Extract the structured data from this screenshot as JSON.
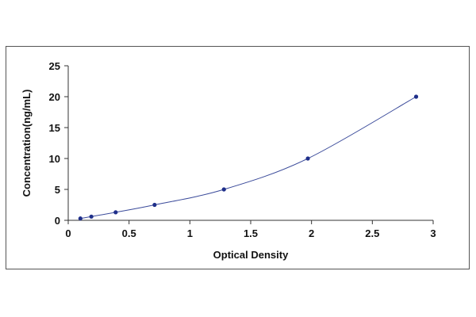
{
  "chart_data": {
    "type": "scatter",
    "title": "",
    "xlabel": "Optical Density",
    "ylabel": "Concentration(ng/mL)",
    "xlim": [
      0,
      3
    ],
    "ylim": [
      0,
      25
    ],
    "x_ticks": [
      0,
      0.5,
      1,
      1.5,
      2,
      2.5,
      3
    ],
    "x_tick_labels": [
      "0",
      "0.5",
      "1",
      "1.5",
      "2",
      "2.5",
      "3"
    ],
    "y_ticks": [
      0,
      5,
      10,
      15,
      20,
      25
    ],
    "y_tick_labels": [
      "0",
      "5",
      "10",
      "15",
      "20",
      "25"
    ],
    "grid": false,
    "legend": "none",
    "colors": {
      "points": "#1f2f8a",
      "curve": "#3a4a9a",
      "axis": "#333333"
    },
    "series": [
      {
        "x": [
          0.1,
          0.19,
          0.39,
          0.71,
          1.28,
          1.97,
          2.86
        ],
        "y": [
          0.3,
          0.6,
          1.3,
          2.5,
          5,
          10,
          20
        ],
        "fit_curve": true
      }
    ]
  }
}
